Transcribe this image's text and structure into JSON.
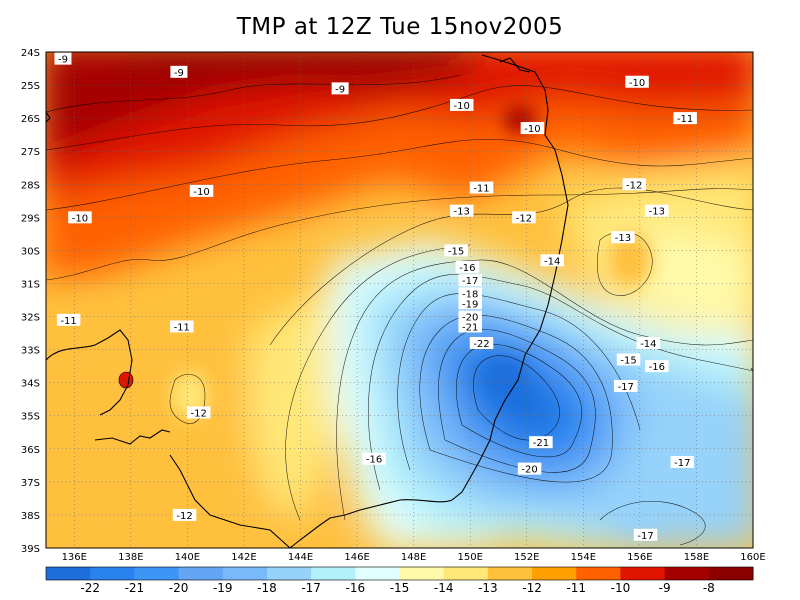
{
  "title": "TMP at 12Z Tue 15nov2005",
  "lat_labels": [
    "24S",
    "25S",
    "26S",
    "27S",
    "28S",
    "29S",
    "30S",
    "31S",
    "32S",
    "33S",
    "34S",
    "35S",
    "36S",
    "37S",
    "38S",
    "39S"
  ],
  "lon_labels": [
    "136E",
    "138E",
    "140E",
    "142E",
    "144E",
    "146E",
    "148E",
    "150E",
    "152E",
    "154E",
    "156E",
    "158E",
    "160E"
  ],
  "colorbar": {
    "values": [
      "-22",
      "-21",
      "-20",
      "-19",
      "-18",
      "-17",
      "-16",
      "-15",
      "-14",
      "-13",
      "-12",
      "-11",
      "-10",
      "-9",
      "-8"
    ],
    "colors": [
      "#1e6edc",
      "#2882f0",
      "#3c96f5",
      "#64a5f5",
      "#78b9fa",
      "#96d2fa",
      "#b4f0fa",
      "#e1ffff",
      "#fffaaa",
      "#ffe878",
      "#ffc03c",
      "#ffa000",
      "#ff6000",
      "#e11400",
      "#a50000",
      "#8c0000"
    ]
  },
  "contour_labels": [
    {
      "text": "-9",
      "lon": 135.6,
      "lat": -24.2
    },
    {
      "text": "-9",
      "lon": 139.7,
      "lat": -24.6
    },
    {
      "text": "-9",
      "lon": 145.4,
      "lat": -25.1
    },
    {
      "text": "-10",
      "lon": 155.9,
      "lat": -24.9
    },
    {
      "text": "-10",
      "lon": 149.7,
      "lat": -25.6
    },
    {
      "text": "-10",
      "lon": 152.2,
      "lat": -26.3
    },
    {
      "text": "-11",
      "lon": 157.6,
      "lat": -26.0
    },
    {
      "text": "-10",
      "lon": 140.5,
      "lat": -28.2
    },
    {
      "text": "-11",
      "lon": 150.4,
      "lat": -28.1
    },
    {
      "text": "-12",
      "lon": 155.8,
      "lat": -28.0
    },
    {
      "text": "-10",
      "lon": 136.2,
      "lat": -29.0
    },
    {
      "text": "-13",
      "lon": 149.7,
      "lat": -28.8
    },
    {
      "text": "-12",
      "lon": 151.9,
      "lat": -29.0
    },
    {
      "text": "-13",
      "lon": 156.6,
      "lat": -28.8
    },
    {
      "text": "-13",
      "lon": 155.4,
      "lat": -29.6
    },
    {
      "text": "-15",
      "lon": 149.5,
      "lat": -30.0
    },
    {
      "text": "-14",
      "lon": 152.9,
      "lat": -30.3
    },
    {
      "text": "-16",
      "lon": 149.9,
      "lat": -30.5
    },
    {
      "text": "-17",
      "lon": 150.0,
      "lat": -30.9
    },
    {
      "text": "-18",
      "lon": 150.0,
      "lat": -31.3
    },
    {
      "text": "-19",
      "lon": 150.0,
      "lat": -31.6
    },
    {
      "text": "-20",
      "lon": 150.0,
      "lat": -32.0
    },
    {
      "text": "-21",
      "lon": 150.0,
      "lat": -32.3
    },
    {
      "text": "-22",
      "lon": 150.4,
      "lat": -32.8
    },
    {
      "text": "-11",
      "lon": 135.8,
      "lat": -32.1
    },
    {
      "text": "-11",
      "lon": 139.8,
      "lat": -32.3
    },
    {
      "text": "-14",
      "lon": 156.3,
      "lat": -32.8
    },
    {
      "text": "-15",
      "lon": 155.6,
      "lat": -33.3
    },
    {
      "text": "-16",
      "lon": 156.6,
      "lat": -33.5
    },
    {
      "text": "-17",
      "lon": 155.5,
      "lat": -34.1
    },
    {
      "text": "-12",
      "lon": 140.4,
      "lat": -34.9
    },
    {
      "text": "-21",
      "lon": 152.5,
      "lat": -35.8
    },
    {
      "text": "-16",
      "lon": 146.6,
      "lat": -36.3
    },
    {
      "text": "-17",
      "lon": 157.5,
      "lat": -36.4
    },
    {
      "text": "-20",
      "lon": 152.1,
      "lat": -36.6
    },
    {
      "text": "-12",
      "lon": 139.9,
      "lat": -38.0
    },
    {
      "text": "-17",
      "lon": 156.2,
      "lat": -38.6
    }
  ]
}
